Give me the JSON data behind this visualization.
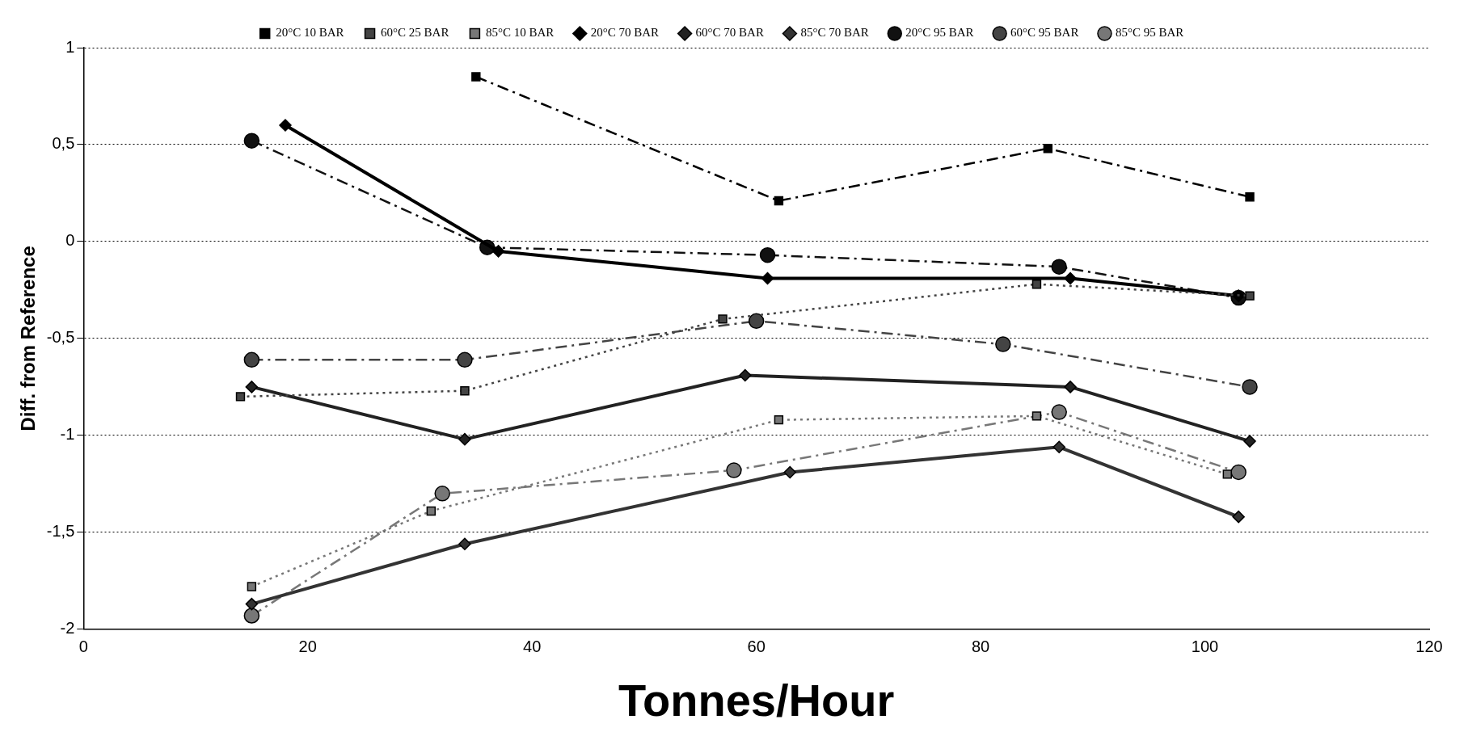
{
  "chart_data": {
    "type": "line",
    "xlabel": "Tonnes/Hour",
    "ylabel": "Diff. from Reference",
    "xlim": [
      0,
      120
    ],
    "xticks": [
      0,
      20,
      40,
      60,
      80,
      100,
      120
    ],
    "ylim": [
      -2,
      1
    ],
    "yticks": [
      {
        "value": -2,
        "label": "-2"
      },
      {
        "value": -1.5,
        "label": "-1,5"
      },
      {
        "value": -1,
        "label": "-1"
      },
      {
        "value": -0.5,
        "label": "-0,5"
      },
      {
        "value": 0,
        "label": "0"
      },
      {
        "value": 0.5,
        "label": "0,5"
      },
      {
        "value": 1,
        "label": "1"
      }
    ],
    "grid": "y",
    "legend": "top",
    "series": [
      {
        "name": "20°C 10 BAR",
        "color": "#000000",
        "marker": "square",
        "line_style": "dashed",
        "x": [
          35,
          62,
          86,
          104
        ],
        "values": [
          0.85,
          0.21,
          0.48,
          0.23
        ]
      },
      {
        "name": "60°C 25 BAR",
        "color": "#444444",
        "marker": "square",
        "line_style": "dotted",
        "x": [
          14,
          34,
          57,
          85,
          104
        ],
        "values": [
          -0.8,
          -0.77,
          -0.4,
          -0.22,
          -0.28
        ]
      },
      {
        "name": "85°C 10 BAR",
        "color": "#777777",
        "marker": "square",
        "line_style": "dotted",
        "x": [
          15,
          31,
          62,
          85,
          102
        ],
        "values": [
          -1.78,
          -1.39,
          -0.92,
          -0.9,
          -1.2
        ]
      },
      {
        "name": "20°C 70 BAR",
        "color": "#000000",
        "marker": "diamond",
        "line_style": "solid",
        "x": [
          18,
          37,
          61,
          88,
          103
        ],
        "values": [
          0.6,
          -0.05,
          -0.19,
          -0.19,
          -0.28
        ]
      },
      {
        "name": "60°C 70 BAR",
        "color": "#222222",
        "marker": "diamond",
        "line_style": "solid",
        "x": [
          15,
          34,
          59,
          88,
          104
        ],
        "values": [
          -0.75,
          -1.02,
          -0.69,
          -0.75,
          -1.03
        ]
      },
      {
        "name": "85°C 70 BAR",
        "color": "#333333",
        "marker": "diamond",
        "line_style": "solid",
        "x": [
          15,
          34,
          63,
          87,
          103
        ],
        "values": [
          -1.87,
          -1.56,
          -1.19,
          -1.06,
          -1.42
        ]
      },
      {
        "name": "20°C 95 BAR",
        "color": "#111111",
        "marker": "circle",
        "line_style": "dashed",
        "x": [
          15,
          36,
          61,
          87,
          103
        ],
        "values": [
          0.52,
          -0.03,
          -0.07,
          -0.13,
          -0.29
        ]
      },
      {
        "name": "60°C 95 BAR",
        "color": "#444444",
        "marker": "circle",
        "line_style": "dashed",
        "x": [
          15,
          34,
          60,
          82,
          104
        ],
        "values": [
          -0.61,
          -0.61,
          -0.41,
          -0.53,
          -0.75
        ]
      },
      {
        "name": "85°C 95 BAR",
        "color": "#777777",
        "marker": "circle",
        "line_style": "dashed",
        "x": [
          15,
          32,
          58,
          87,
          103
        ],
        "values": [
          -1.93,
          -1.3,
          -1.18,
          -0.88,
          -1.19
        ]
      }
    ]
  }
}
